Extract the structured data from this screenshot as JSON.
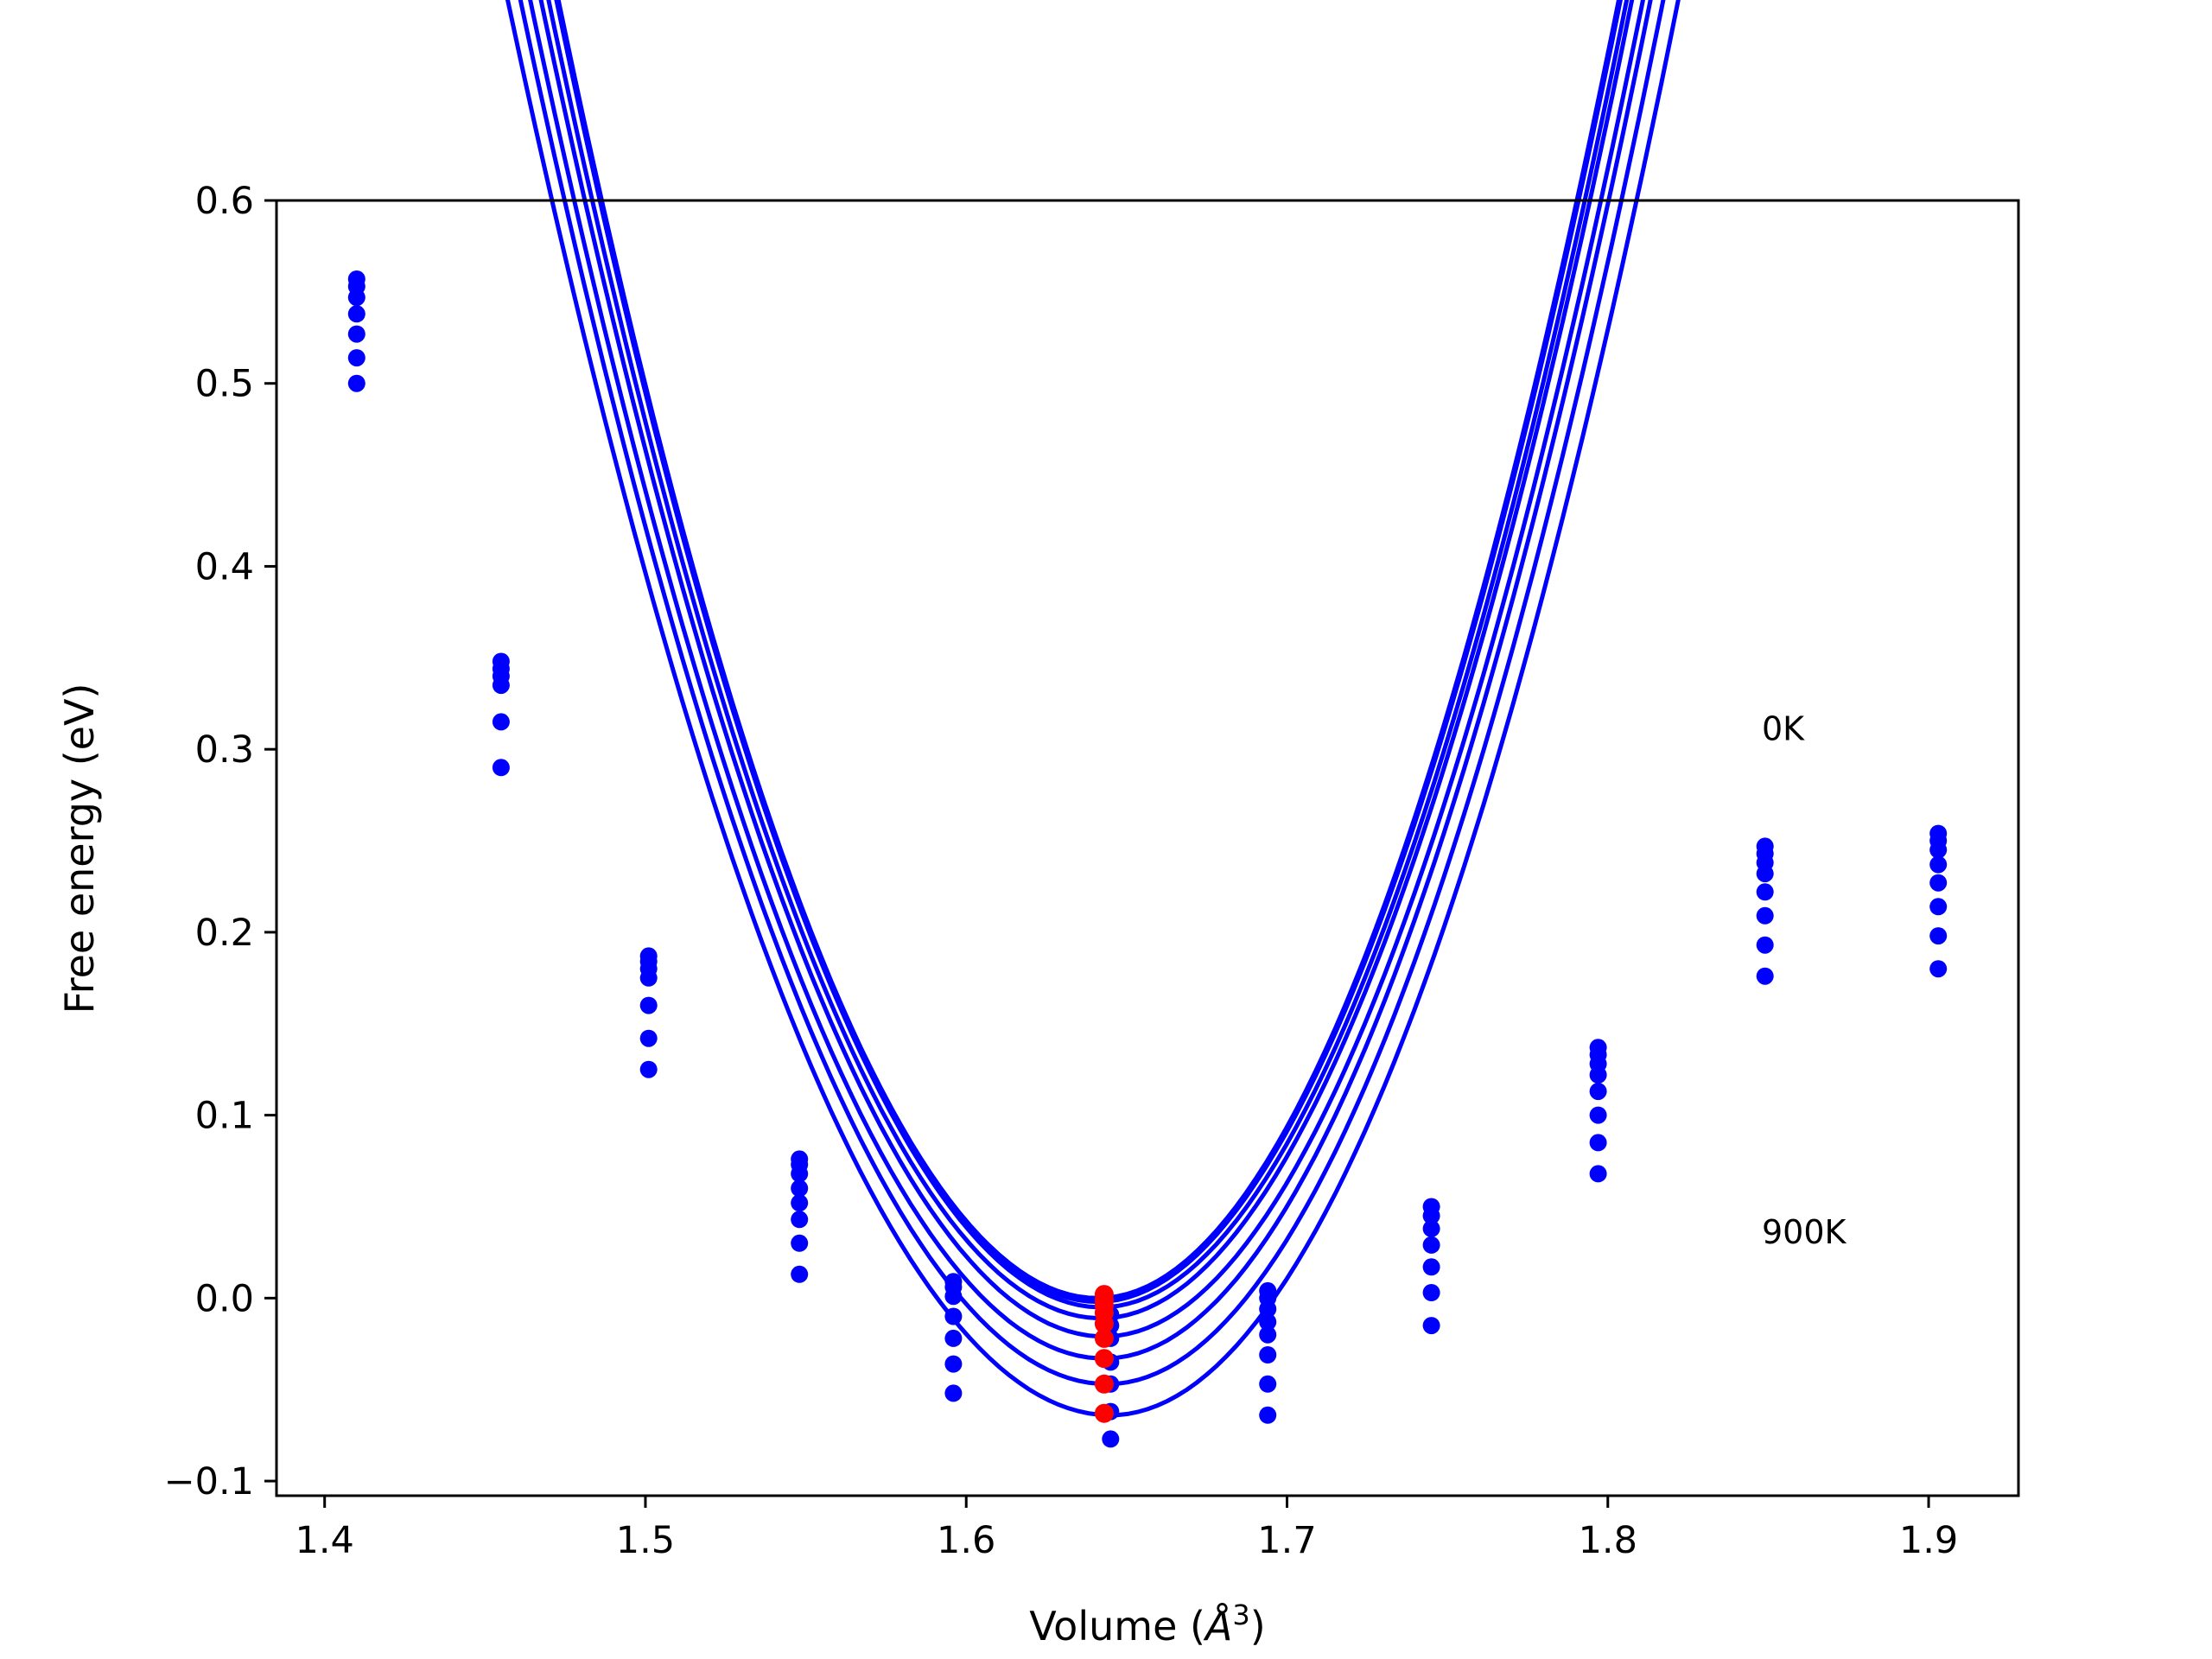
{
  "chart_data": {
    "type": "scatter",
    "xlabel": "Volume (",
    "xlabel_unit": "Å",
    "xlabel_sup": "3",
    "xlabel_close": ")",
    "ylabel": "Free energy (eV)",
    "xlim": [
      1.385,
      1.928
    ],
    "ylim": [
      -0.108,
      0.6
    ],
    "x_ticks": [
      1.4,
      1.5,
      1.6,
      1.7,
      1.8,
      1.9
    ],
    "x_tick_labels": [
      "1.4",
      "1.5",
      "1.6",
      "1.7",
      "1.8",
      "1.9"
    ],
    "y_ticks": [
      -0.1,
      0.0,
      0.1,
      0.2,
      0.3,
      0.4,
      0.5,
      0.6
    ],
    "y_tick_labels": [
      "−0.1",
      "0.0",
      "0.1",
      "0.2",
      "0.3",
      "0.4",
      "0.5",
      "0.6"
    ],
    "grid": false,
    "legend": "none",
    "annotations": [
      {
        "text": "0K",
        "x": 1.848,
        "y": 0.305
      },
      {
        "text": "900K",
        "x": 1.848,
        "y": 0.03
      }
    ],
    "colors": {
      "series": "#0000ff",
      "minimum": "#ff0000",
      "axes": "#000000"
    },
    "fit_x_range": [
      1.41,
      1.903
    ],
    "curves": [
      {
        "vmin": 1.641,
        "fmin": 0.0,
        "a": 25.1,
        "b": 26.9
      },
      {
        "vmin": 1.641,
        "fmin": -0.001,
        "a": 25.1,
        "b": 26.9
      },
      {
        "vmin": 1.641,
        "fmin": -0.002,
        "a": 25.0,
        "b": 26.8
      },
      {
        "vmin": 1.642,
        "fmin": -0.005,
        "a": 24.8,
        "b": 26.6
      },
      {
        "vmin": 1.642,
        "fmin": -0.011,
        "a": 24.3,
        "b": 26.3
      },
      {
        "vmin": 1.643,
        "fmin": -0.021,
        "a": 23.7,
        "b": 25.9
      },
      {
        "vmin": 1.643,
        "fmin": -0.033,
        "a": 23.2,
        "b": 25.6
      },
      {
        "vmin": 1.644,
        "fmin": -0.047,
        "a": 22.6,
        "b": 25.2
      },
      {
        "vmin": 1.645,
        "fmin": -0.064,
        "a": 21.9,
        "b": 24.7
      }
    ],
    "points": [
      {
        "x": 1.41,
        "ys": [
          0.557,
          0.553,
          0.547,
          0.538,
          0.527,
          0.514,
          0.5
        ]
      },
      {
        "x": 1.455,
        "ys": [
          0.348,
          0.344,
          0.34,
          0.335,
          0.315,
          0.29
        ]
      },
      {
        "x": 1.501,
        "ys": [
          0.187,
          0.184,
          0.18,
          0.175,
          0.16,
          0.142,
          0.125
        ]
      },
      {
        "x": 1.548,
        "ys": [
          0.076,
          0.073,
          0.068,
          0.06,
          0.052,
          0.043,
          0.03,
          0.013
        ]
      },
      {
        "x": 1.596,
        "ys": [
          0.009,
          0.006,
          0.001,
          -0.01,
          -0.022,
          -0.036,
          -0.052
        ]
      },
      {
        "x": 1.645,
        "ys": [
          -0.009,
          -0.015,
          -0.022,
          -0.035,
          -0.047,
          -0.062,
          -0.077
        ]
      },
      {
        "x": 1.694,
        "ys": [
          0.004,
          0.0,
          -0.006,
          -0.013,
          -0.02,
          -0.031,
          -0.047,
          -0.064
        ]
      },
      {
        "x": 1.745,
        "ys": [
          0.05,
          0.045,
          0.038,
          0.029,
          0.017,
          0.003,
          -0.015
        ]
      },
      {
        "x": 1.797,
        "ys": [
          0.137,
          0.133,
          0.128,
          0.122,
          0.113,
          0.1,
          0.085,
          0.068
        ]
      },
      {
        "x": 1.849,
        "ys": [
          0.247,
          0.243,
          0.238,
          0.232,
          0.222,
          0.209,
          0.193,
          0.176
        ]
      },
      {
        "x": 1.903,
        "ys": [
          0.254,
          0.25,
          0.245,
          0.237,
          0.227,
          0.214,
          0.198,
          0.18
        ]
      }
    ],
    "minimum_points": {
      "x": 1.643,
      "ys": [
        0.002,
        -0.001,
        -0.004,
        -0.008,
        -0.014,
        -0.022,
        -0.033,
        -0.047,
        -0.063
      ]
    }
  }
}
